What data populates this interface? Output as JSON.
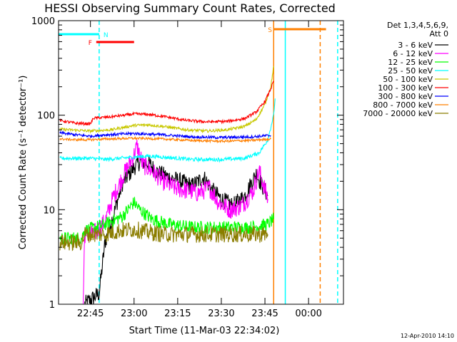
{
  "chart_data": {
    "type": "line",
    "title": "HESSI Observing Summary Count Rates, Corrected",
    "xlabel": "Start Time (11-Mar-03 22:34:02)",
    "ylabel": "Corrected Count Rate (s⁻¹ detector⁻¹)",
    "y_scale": "log",
    "ylim": [
      1,
      1000
    ],
    "xlim": [
      "22:34:02",
      "00:12:00"
    ],
    "x_tick_labels": [
      "22:45",
      "23:00",
      "23:15",
      "23:30",
      "23:45",
      "00:00"
    ],
    "y_tick_labels": [
      "1",
      "10",
      "100",
      "1000"
    ],
    "grid": false,
    "legend_header": [
      "Det 1,3,4,5,6,9,",
      "Att 0"
    ],
    "legend_position": "outside-right",
    "series": [
      {
        "name": "3 - 6 keV",
        "color": "#000000",
        "points": [
          [
            "22:43:00",
            1.0
          ],
          [
            "22:48:00",
            1.3
          ],
          [
            "22:50:00",
            4.5
          ],
          [
            "22:53:00",
            9.0
          ],
          [
            "22:56:00",
            19
          ],
          [
            "23:00:00",
            28
          ],
          [
            "23:02:00",
            32
          ],
          [
            "23:05:00",
            31
          ],
          [
            "23:08:00",
            25
          ],
          [
            "23:12:00",
            22
          ],
          [
            "23:16:00",
            20
          ],
          [
            "23:20:00",
            18
          ],
          [
            "23:24:00",
            22
          ],
          [
            "23:27:00",
            16
          ],
          [
            "23:30:00",
            13
          ],
          [
            "23:34:00",
            11
          ],
          [
            "23:38:00",
            14
          ],
          [
            "23:42:00",
            24
          ],
          [
            "23:44:00",
            18
          ],
          [
            "23:46:00",
            14
          ]
        ]
      },
      {
        "name": "6 - 12 keV",
        "color": "#ff00ff",
        "points": [
          [
            "22:42:30",
            1.0
          ],
          [
            "22:43:00",
            5.5
          ],
          [
            "22:46:00",
            5.5
          ],
          [
            "22:50:00",
            7.5
          ],
          [
            "22:53:00",
            14
          ],
          [
            "22:56:00",
            22
          ],
          [
            "23:00:00",
            38
          ],
          [
            "23:01:00",
            47
          ],
          [
            "23:03:00",
            30
          ],
          [
            "23:06:00",
            26
          ],
          [
            "23:10:00",
            20
          ],
          [
            "23:14:00",
            17
          ],
          [
            "23:18:00",
            16
          ],
          [
            "23:22:00",
            15
          ],
          [
            "23:26:00",
            17
          ],
          [
            "23:29:00",
            12
          ],
          [
            "23:33:00",
            10
          ],
          [
            "23:37:00",
            11
          ],
          [
            "23:41:00",
            16
          ],
          [
            "23:43:00",
            26
          ],
          [
            "23:46:00",
            13
          ]
        ]
      },
      {
        "name": "12 - 25 keV",
        "color": "#00ff00",
        "points": [
          [
            "22:34:30",
            5.0
          ],
          [
            "22:42:00",
            5.0
          ],
          [
            "22:43:00",
            6.0
          ],
          [
            "22:50:00",
            7.0
          ],
          [
            "22:56:00",
            8.5
          ],
          [
            "23:00:00",
            12
          ],
          [
            "23:02:00",
            10
          ],
          [
            "23:06:00",
            8
          ],
          [
            "23:12:00",
            7
          ],
          [
            "23:20:00",
            6.5
          ],
          [
            "23:30:00",
            6.5
          ],
          [
            "23:40:00",
            6.5
          ],
          [
            "23:46:00",
            7.0
          ],
          [
            "23:48:00",
            8.0
          ]
        ]
      },
      {
        "name": "25 - 50 keV",
        "color": "#00ffff",
        "points": [
          [
            "22:34:30",
            35
          ],
          [
            "22:45:00",
            35
          ],
          [
            "22:50:00",
            34
          ],
          [
            "22:55:00",
            35
          ],
          [
            "23:00:00",
            36
          ],
          [
            "23:05:00",
            37
          ],
          [
            "23:10:00",
            36
          ],
          [
            "23:20:00",
            34
          ],
          [
            "23:30:00",
            34
          ],
          [
            "23:38:00",
            35
          ],
          [
            "23:43:00",
            40
          ],
          [
            "23:46:00",
            55
          ],
          [
            "23:48:00",
            100
          ],
          [
            "23:48:30",
            150
          ]
        ]
      },
      {
        "name": "50 - 100 keV",
        "color": "#c8c800",
        "points": [
          [
            "22:34:30",
            71
          ],
          [
            "22:45:00",
            68
          ],
          [
            "22:52:00",
            70
          ],
          [
            "23:00:00",
            78
          ],
          [
            "23:05:00",
            79
          ],
          [
            "23:10:00",
            76
          ],
          [
            "23:18:00",
            70
          ],
          [
            "23:25:00",
            68
          ],
          [
            "23:32:00",
            70
          ],
          [
            "23:38:00",
            76
          ],
          [
            "23:42:00",
            90
          ],
          [
            "23:45:00",
            130
          ],
          [
            "23:47:00",
            200
          ],
          [
            "23:48:00",
            330
          ]
        ]
      },
      {
        "name": "100 - 300 keV",
        "color": "#ff0000",
        "points": [
          [
            "22:34:30",
            88
          ],
          [
            "22:40:00",
            82
          ],
          [
            "22:45:00",
            81
          ],
          [
            "22:46:00",
            93
          ],
          [
            "22:52:00",
            96
          ],
          [
            "23:00:00",
            103
          ],
          [
            "23:05:00",
            102
          ],
          [
            "23:10:00",
            97
          ],
          [
            "23:18:00",
            88
          ],
          [
            "23:25:00",
            85
          ],
          [
            "23:32:00",
            86
          ],
          [
            "23:38:00",
            92
          ],
          [
            "23:42:00",
            108
          ],
          [
            "23:45:00",
            140
          ],
          [
            "23:47:00",
            190
          ],
          [
            "23:48:00",
            230
          ]
        ]
      },
      {
        "name": "300 - 800 keV",
        "color": "#0000ff",
        "points": [
          [
            "22:34:30",
            65
          ],
          [
            "22:40:00",
            62
          ],
          [
            "22:45:00",
            60
          ],
          [
            "22:50:00",
            62
          ],
          [
            "23:00:00",
            64
          ],
          [
            "23:10:00",
            62
          ],
          [
            "23:20:00",
            59
          ],
          [
            "23:30:00",
            58
          ],
          [
            "23:40:00",
            59
          ],
          [
            "23:47:00",
            61
          ]
        ]
      },
      {
        "name": "800 - 7000 keV",
        "color": "#ff8000",
        "points": [
          [
            "22:34:30",
            56
          ],
          [
            "22:40:00",
            55
          ],
          [
            "22:45:00",
            55
          ],
          [
            "22:50:00",
            56
          ],
          [
            "23:00:00",
            57
          ],
          [
            "23:10:00",
            56
          ],
          [
            "23:20:00",
            54
          ],
          [
            "23:30:00",
            53
          ],
          [
            "23:40:00",
            54
          ],
          [
            "23:47:00",
            56
          ]
        ]
      },
      {
        "name": "7000 - 20000 keV",
        "color": "#8b7d00",
        "points": [
          [
            "22:34:30",
            4.5
          ],
          [
            "22:42:00",
            4.5
          ],
          [
            "22:43:00",
            5.5
          ],
          [
            "22:50:00",
            5.5
          ],
          [
            "22:55:00",
            6.0
          ],
          [
            "23:00:00",
            6.2
          ],
          [
            "23:05:00",
            5.8
          ],
          [
            "23:10:00",
            5.5
          ],
          [
            "23:15:00",
            5.5
          ],
          [
            "23:25:00",
            5.5
          ],
          [
            "23:35:00",
            5.5
          ],
          [
            "23:46:00",
            5.5
          ]
        ]
      }
    ],
    "flag_bars": [
      {
        "label": "F",
        "color": "#ff0000",
        "segments": [
          [
            "22:47:00",
            "23:00:00"
          ]
        ]
      },
      {
        "label": "N",
        "color": "#00ffff",
        "segments": [
          [
            "22:34:02",
            "22:48:00"
          ]
        ]
      },
      {
        "label": "S",
        "color": "#ff8000",
        "segments": [
          [
            "23:48:00",
            "00:06:00"
          ]
        ]
      }
    ],
    "vertical_markers": [
      {
        "time": "22:48:00",
        "color": "#00ffff",
        "style": "dashed"
      },
      {
        "time": "23:48:00",
        "color": "#ff8000",
        "style": "solid"
      },
      {
        "time": "23:52:00",
        "color": "#00ffff",
        "style": "solid"
      },
      {
        "time": "00:04:00",
        "color": "#ff8000",
        "style": "dashed"
      },
      {
        "time": "00:10:00",
        "color": "#00ffff",
        "style": "dashed"
      }
    ],
    "footer_stamp": "12-Apr-2010 14:10"
  }
}
